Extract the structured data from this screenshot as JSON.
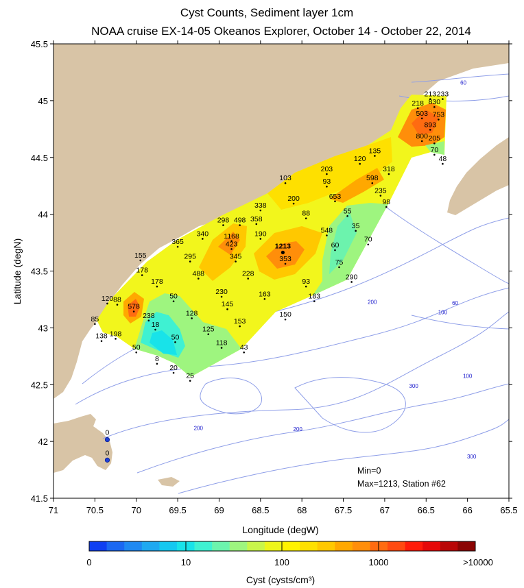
{
  "chart_data": {
    "type": "map",
    "title": "Cyst Counts, Sediment layer 1cm",
    "subtitle": "NOAA cruise EX-14-05 Okeanos Explorer, October 14 - October 22, 2014",
    "xlabel": "Longitude (degW)",
    "ylabel": "Latitude (degN)",
    "xlim": [
      71,
      65.5
    ],
    "ylim": [
      41.5,
      45.5
    ],
    "x_ticks": [
      "71",
      "70.5",
      "70",
      "69.5",
      "69",
      "68.5",
      "68",
      "67.5",
      "67",
      "66.5",
      "66",
      "65.5"
    ],
    "y_ticks": [
      "41.5",
      "42",
      "42.5",
      "43",
      "43.5",
      "44",
      "44.5",
      "45",
      "45.5"
    ],
    "stations": [
      {
        "lon": 66.45,
        "lat": 45.05,
        "value": "213"
      },
      {
        "lon": 66.3,
        "lat": 45.05,
        "value": "233"
      },
      {
        "lon": 66.6,
        "lat": 44.97,
        "value": "218"
      },
      {
        "lon": 66.4,
        "lat": 44.98,
        "value": "830"
      },
      {
        "lon": 66.55,
        "lat": 44.88,
        "value": "503"
      },
      {
        "lon": 66.35,
        "lat": 44.87,
        "value": "753"
      },
      {
        "lon": 66.45,
        "lat": 44.78,
        "value": "893"
      },
      {
        "lon": 66.55,
        "lat": 44.68,
        "value": "800"
      },
      {
        "lon": 66.4,
        "lat": 44.66,
        "value": "205"
      },
      {
        "lon": 66.4,
        "lat": 44.56,
        "value": "70"
      },
      {
        "lon": 66.3,
        "lat": 44.48,
        "value": "48"
      },
      {
        "lon": 67.12,
        "lat": 44.55,
        "value": "135"
      },
      {
        "lon": 67.3,
        "lat": 44.48,
        "value": "120"
      },
      {
        "lon": 66.95,
        "lat": 44.39,
        "value": "318"
      },
      {
        "lon": 67.7,
        "lat": 44.39,
        "value": "203"
      },
      {
        "lon": 67.15,
        "lat": 44.31,
        "value": "598"
      },
      {
        "lon": 67.7,
        "lat": 44.28,
        "value": "93"
      },
      {
        "lon": 68.2,
        "lat": 44.31,
        "value": "103"
      },
      {
        "lon": 67.05,
        "lat": 44.2,
        "value": "235"
      },
      {
        "lon": 67.6,
        "lat": 44.15,
        "value": "653"
      },
      {
        "lon": 68.1,
        "lat": 44.13,
        "value": "200"
      },
      {
        "lon": 68.5,
        "lat": 44.07,
        "value": "338"
      },
      {
        "lon": 66.98,
        "lat": 44.1,
        "value": "98"
      },
      {
        "lon": 67.45,
        "lat": 44.02,
        "value": "55"
      },
      {
        "lon": 67.95,
        "lat": 44.0,
        "value": "88"
      },
      {
        "lon": 68.55,
        "lat": 43.95,
        "value": "358"
      },
      {
        "lon": 68.75,
        "lat": 43.94,
        "value": "498"
      },
      {
        "lon": 68.95,
        "lat": 43.94,
        "value": "298"
      },
      {
        "lon": 67.35,
        "lat": 43.89,
        "value": "35"
      },
      {
        "lon": 67.7,
        "lat": 43.85,
        "value": "548"
      },
      {
        "lon": 68.5,
        "lat": 43.82,
        "value": "190"
      },
      {
        "lon": 68.85,
        "lat": 43.8,
        "value": "1168"
      },
      {
        "lon": 69.2,
        "lat": 43.82,
        "value": "340"
      },
      {
        "lon": 67.2,
        "lat": 43.77,
        "value": "70"
      },
      {
        "lon": 69.5,
        "lat": 43.75,
        "value": "365"
      },
      {
        "lon": 68.85,
        "lat": 43.73,
        "value": "423"
      },
      {
        "lon": 68.23,
        "lat": 43.7,
        "value": "1213"
      },
      {
        "lon": 67.6,
        "lat": 43.72,
        "value": "60"
      },
      {
        "lon": 69.35,
        "lat": 43.62,
        "value": "295"
      },
      {
        "lon": 68.8,
        "lat": 43.62,
        "value": "345"
      },
      {
        "lon": 68.2,
        "lat": 43.6,
        "value": "353"
      },
      {
        "lon": 67.55,
        "lat": 43.57,
        "value": "75"
      },
      {
        "lon": 69.95,
        "lat": 43.63,
        "value": "155"
      },
      {
        "lon": 69.93,
        "lat": 43.5,
        "value": "178"
      },
      {
        "lon": 69.25,
        "lat": 43.47,
        "value": "488"
      },
      {
        "lon": 68.65,
        "lat": 43.47,
        "value": "228"
      },
      {
        "lon": 67.4,
        "lat": 43.44,
        "value": "290"
      },
      {
        "lon": 67.95,
        "lat": 43.4,
        "value": "93"
      },
      {
        "lon": 69.75,
        "lat": 43.4,
        "value": "178"
      },
      {
        "lon": 68.97,
        "lat": 43.31,
        "value": "230"
      },
      {
        "lon": 68.45,
        "lat": 43.29,
        "value": "163"
      },
      {
        "lon": 67.85,
        "lat": 43.27,
        "value": "183"
      },
      {
        "lon": 70.35,
        "lat": 43.25,
        "value": "120"
      },
      {
        "lon": 70.23,
        "lat": 43.24,
        "value": "88"
      },
      {
        "lon": 69.55,
        "lat": 43.27,
        "value": "50"
      },
      {
        "lon": 68.9,
        "lat": 43.2,
        "value": "145"
      },
      {
        "lon": 70.03,
        "lat": 43.18,
        "value": "578"
      },
      {
        "lon": 69.33,
        "lat": 43.12,
        "value": "128"
      },
      {
        "lon": 68.2,
        "lat": 43.11,
        "value": "150"
      },
      {
        "lon": 69.85,
        "lat": 43.1,
        "value": "238"
      },
      {
        "lon": 68.75,
        "lat": 43.05,
        "value": "153"
      },
      {
        "lon": 69.77,
        "lat": 43.02,
        "value": "18"
      },
      {
        "lon": 70.5,
        "lat": 43.07,
        "value": "85"
      },
      {
        "lon": 69.13,
        "lat": 42.98,
        "value": "125"
      },
      {
        "lon": 70.25,
        "lat": 42.94,
        "value": "198"
      },
      {
        "lon": 70.42,
        "lat": 42.92,
        "value": "138"
      },
      {
        "lon": 69.53,
        "lat": 42.91,
        "value": "50"
      },
      {
        "lon": 68.97,
        "lat": 42.86,
        "value": "118"
      },
      {
        "lon": 70.0,
        "lat": 42.82,
        "value": "50"
      },
      {
        "lon": 68.7,
        "lat": 42.82,
        "value": "43"
      },
      {
        "lon": 69.75,
        "lat": 42.72,
        "value": "8"
      },
      {
        "lon": 69.55,
        "lat": 42.64,
        "value": "20"
      },
      {
        "lon": 69.35,
        "lat": 42.57,
        "value": "25"
      },
      {
        "lon": 70.35,
        "lat": 42.07,
        "value": "0"
      },
      {
        "lon": 70.35,
        "lat": 41.89,
        "value": "0"
      }
    ],
    "contours": [
      {
        "label": "60",
        "lon": 66.05,
        "lat": 45.14
      },
      {
        "label": "200",
        "lon": 67.15,
        "lat": 43.21
      },
      {
        "label": "60",
        "lon": 66.15,
        "lat": 43.2
      },
      {
        "label": "100",
        "lon": 66.3,
        "lat": 43.12
      },
      {
        "label": "100",
        "lon": 66.0,
        "lat": 42.56
      },
      {
        "lon": 66.65,
        "lat": 42.47,
        "label": "300"
      },
      {
        "label": "200",
        "lon": 69.25,
        "lat": 42.1
      },
      {
        "label": "200",
        "lon": 68.05,
        "lat": 42.09
      },
      {
        "label": "300",
        "lon": 65.95,
        "lat": 41.85
      }
    ],
    "legend": {
      "title": "Cyst (cysts/cm³)",
      "tick_labels": [
        "0",
        "10",
        "100",
        "1000",
        ">10000"
      ],
      "colors": [
        "#0f3ff2",
        "#1b68f2",
        "#1f89f2",
        "#1fa9f1",
        "#14c8f0",
        "#18e3e9",
        "#3ff1d2",
        "#6cf3ad",
        "#9ef57f",
        "#c9f64a",
        "#eef61a",
        "#fff300",
        "#fee000",
        "#ffc800",
        "#ffa800",
        "#ff8e0a",
        "#ff6b11",
        "#ff4a11",
        "#ff1c0a",
        "#e60909",
        "#b90607",
        "#8b0403"
      ]
    },
    "annotation": {
      "min": "Min=0",
      "max": "Max=1213, Station #62"
    }
  }
}
